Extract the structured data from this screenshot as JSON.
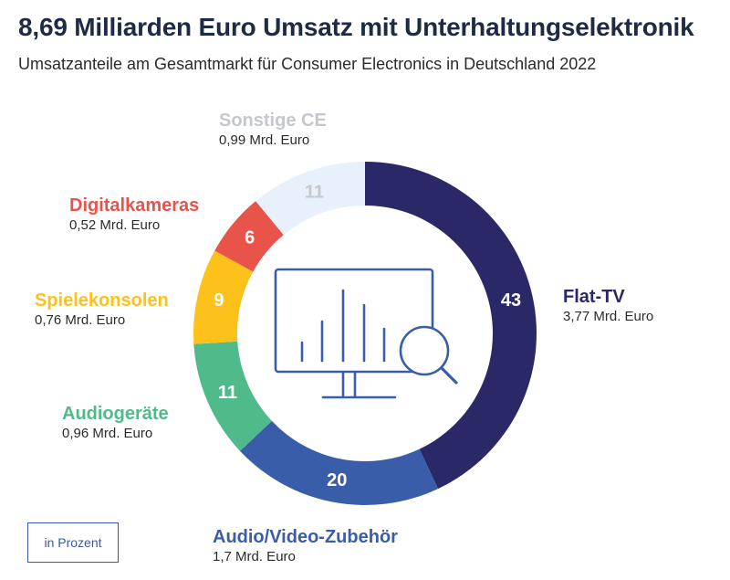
{
  "title": "8,69 Milliarden Euro Umsatz mit Unterhaltungselektronik",
  "subtitle": "Umsatzanteile am Gesamtmarkt für Consumer Electronics in Deutschland 2022",
  "unit_note": "in Prozent",
  "colors": {
    "flat_tv": "#2b2868",
    "audio_video": "#3a5daa",
    "audio": "#4fba8a",
    "spiele": "#fcc21b",
    "digital": "#e8534a",
    "sonstige": "#e8f0fb",
    "icon": "#3a5daa"
  },
  "labels": {
    "flat_tv": {
      "name": "Flat-TV",
      "amount": "3,77 Mrd. Euro"
    },
    "audio_video": {
      "name": "Audio/Video-Zubehör",
      "amount": "1,7 Mrd. Euro"
    },
    "audio": {
      "name": "Audiogeräte",
      "amount": "0,96 Mrd. Euro"
    },
    "spiele": {
      "name": "Spielekonsolen",
      "amount": "0,76 Mrd. Euro"
    },
    "digital": {
      "name": "Digitalkameras",
      "amount": "0,52 Mrd. Euro"
    },
    "sonstige": {
      "name": "Sonstige CE",
      "amount": "0,99 Mrd. Euro"
    }
  },
  "chart_data": {
    "type": "pie",
    "style": "donut",
    "title": "8,69 Milliarden Euro Umsatz mit Unterhaltungselektronik",
    "subtitle": "Umsatzanteile am Gesamtmarkt für Consumer Electronics in Deutschland 2022",
    "unit": "in Prozent",
    "slices": [
      {
        "key": "flat_tv",
        "label": "Flat-TV",
        "value": 43,
        "amount": "3,77 Mrd. Euro",
        "color": "#2b2868",
        "value_color": "#ffffff"
      },
      {
        "key": "audio_video",
        "label": "Audio/Video-Zubehör",
        "value": 20,
        "amount": "1,7 Mrd. Euro",
        "color": "#3a5daa",
        "value_color": "#ffffff"
      },
      {
        "key": "audio",
        "label": "Audiogeräte",
        "value": 11,
        "amount": "0,96 Mrd. Euro",
        "color": "#4fba8a",
        "value_color": "#ffffff"
      },
      {
        "key": "spiele",
        "label": "Spielekonsolen",
        "value": 9,
        "amount": "0,76 Mrd. Euro",
        "color": "#fcc21b",
        "value_color": "#ffffff"
      },
      {
        "key": "digital",
        "label": "Digitalkameras",
        "value": 6,
        "amount": "0,52 Mrd. Euro",
        "color": "#e8534a",
        "value_color": "#ffffff"
      },
      {
        "key": "sonstige",
        "label": "Sonstige CE",
        "value": 11,
        "amount": "0,99 Mrd. Euro",
        "color": "#e8f0fb",
        "value_color": "#c4c7cc"
      }
    ]
  }
}
